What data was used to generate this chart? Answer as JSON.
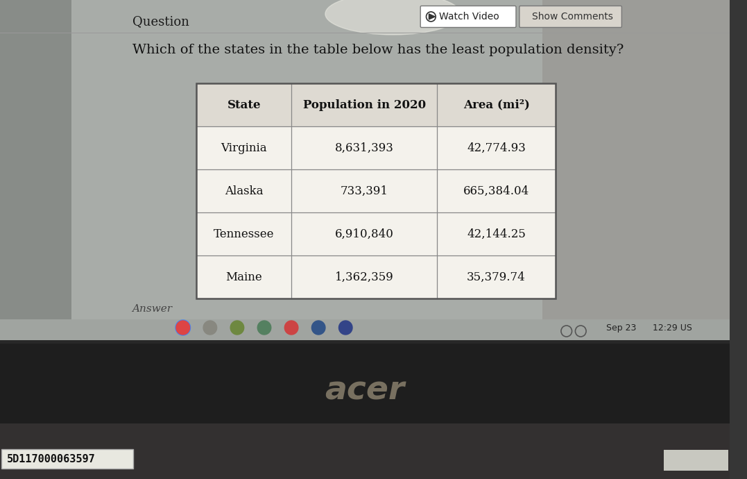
{
  "question_label": "Question",
  "watch_video_text": "Watch Video",
  "show_comments_text": "Show Comments",
  "question_text": "Which of the states in the table below has the least population density?",
  "answer_label": "Answer",
  "footer_text": "Sep 23   12:29 US",
  "barcode_text": "5D117000063597",
  "table_headers": [
    "State",
    "Population in 2020",
    "Area (mi²)"
  ],
  "table_data": [
    [
      "Virginia",
      "8,631,393",
      "42,774.93"
    ],
    [
      "Alaska",
      "733,391",
      "665,384.04"
    ],
    [
      "Tennessee",
      "6,910,840",
      "42,144.25"
    ],
    [
      "Maine",
      "1,362,359",
      "35,379.74"
    ]
  ],
  "screen_light_bg": "#b8bcb8",
  "screen_dark_bg": "#363636",
  "taskbar_bg": "#909090",
  "content_bg": "#b4b8b4",
  "left_dark": "#787878",
  "table_bg": "#ffffff",
  "table_header_bg": "#e0dcd4",
  "table_row_bg": "#f0eee8",
  "table_border": "#555555",
  "text_dark": "#1a1a1a",
  "button_bg": "#ffffff",
  "button_border": "#888888",
  "acer_color": "#b8b0a8",
  "laptop_body": "#2a2a2a",
  "bottom_body": "#3a3838",
  "serial_bg": "#e8e8e0",
  "taskbar_strip": "#a0a4a0"
}
